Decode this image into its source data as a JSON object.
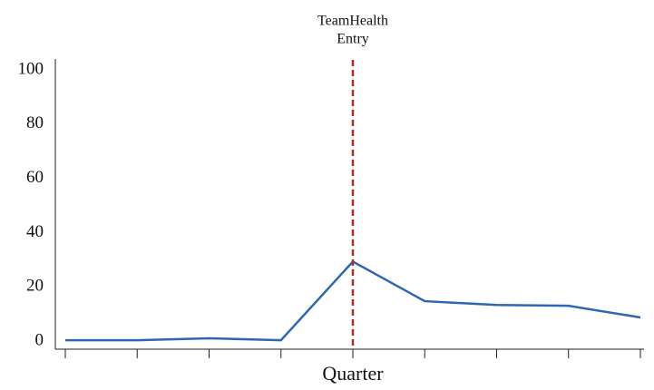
{
  "chart_data": {
    "type": "line",
    "x_label": "Quarter",
    "categories": [
      null,
      null,
      null,
      null,
      null,
      null,
      null,
      null,
      null
    ],
    "values": [
      0.3,
      0.3,
      1,
      0.3,
      29.3,
      14.7,
      13.3,
      13,
      8.7
    ],
    "color": "#2e67b1",
    "ylim": [
      -3,
      104
    ],
    "yticks": [
      0,
      20,
      40,
      60,
      80,
      100
    ],
    "vline": {
      "category_index": 4,
      "label": [
        "TeamHealth",
        "Entry"
      ],
      "color": "#b22a2a",
      "dashed": true
    }
  }
}
